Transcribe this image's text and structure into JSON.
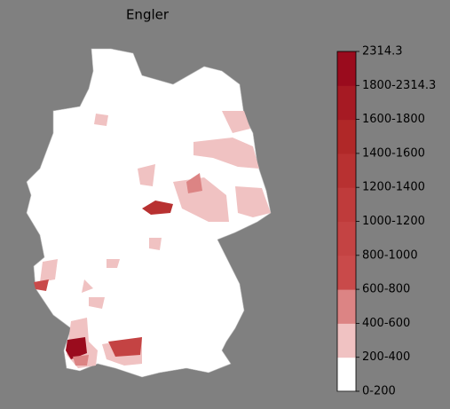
{
  "title": "Engler",
  "colorbar": {
    "labels": [
      "0-200",
      "200-400",
      "400-600",
      "600-800",
      "800-1000",
      "1000-1200",
      "1200-1400",
      "1400-1600",
      "1600-1800",
      "1800-2314.3",
      "2314.3"
    ],
    "colors": [
      "#ffffff",
      "#f0c2c2",
      "#dc8484",
      "#c94a4a",
      "#c44343",
      "#bf3b3b",
      "#b83131",
      "#b02828",
      "#a61a23",
      "#9a0b1d"
    ]
  }
}
